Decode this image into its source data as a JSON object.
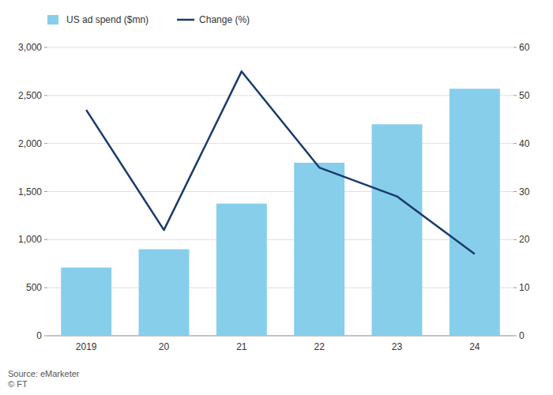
{
  "chart_data": {
    "type": "bar",
    "categories": [
      "2019",
      "20",
      "21",
      "22",
      "23",
      "24"
    ],
    "series": [
      {
        "name": "US ad spend ($mn)",
        "type": "bar",
        "color": "#87CEEB",
        "values": [
          710,
          900,
          1375,
          1800,
          2200,
          2570
        ]
      },
      {
        "name": "Change (%)",
        "type": "line",
        "color": "#1a3a6b",
        "axis": "y2",
        "values": [
          47,
          22,
          55,
          35,
          29,
          17
        ]
      }
    ],
    "ylim": [
      0,
      3000
    ],
    "yticks": [
      0,
      500,
      {
        "value": 1000,
        "label": "1,000"
      },
      {
        "value": 1500,
        "label": "1,500"
      },
      {
        "value": 2000,
        "label": "2,000"
      },
      {
        "value": 2500,
        "label": "2,500"
      },
      {
        "value": 3000,
        "label": "3,000"
      }
    ],
    "y2lim": [
      0,
      60
    ],
    "y2ticks": [
      0,
      10,
      20,
      30,
      40,
      50,
      60
    ],
    "grid": true,
    "legend": "top",
    "annotations": [
      "Source: eMarketer\n© FT"
    ]
  }
}
